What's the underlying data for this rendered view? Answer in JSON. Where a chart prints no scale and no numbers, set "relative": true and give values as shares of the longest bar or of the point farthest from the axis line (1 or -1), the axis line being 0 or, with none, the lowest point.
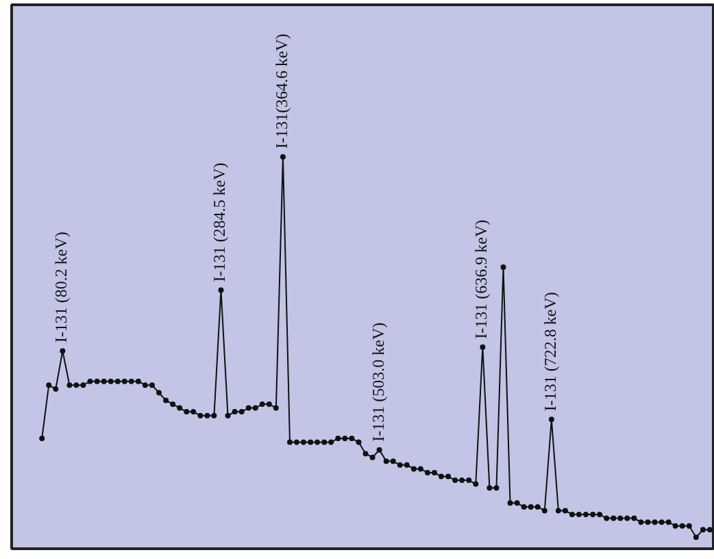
{
  "chart_data": {
    "type": "line",
    "relative": true,
    "tick_labels": false,
    "grid": false,
    "marker": "circle",
    "categories": [
      null,
      null,
      null,
      null,
      null,
      null,
      null,
      null,
      null,
      null,
      null,
      null,
      null,
      null,
      null,
      null,
      null,
      null,
      null,
      null,
      null,
      null,
      null,
      null,
      null,
      null,
      null,
      null,
      null,
      null,
      null,
      null,
      null,
      null,
      null,
      null,
      null,
      null,
      null,
      null,
      null,
      null,
      null,
      null,
      null,
      null,
      null,
      null,
      null,
      null,
      null,
      null,
      null,
      null,
      null,
      null,
      null,
      null,
      null,
      null,
      null,
      null,
      null,
      null,
      null,
      null,
      null,
      null,
      null,
      null,
      null,
      null,
      null,
      null,
      null,
      null,
      null,
      null,
      null,
      null,
      null,
      null,
      null,
      null,
      null,
      null,
      null,
      null,
      null,
      null,
      null,
      null,
      null,
      null,
      null,
      null,
      null,
      null
    ],
    "series": [
      {
        "color": "#111111",
        "values": [
          0.26,
          0.4,
          0.39,
          0.49,
          0.4,
          0.4,
          0.4,
          0.41,
          0.41,
          0.41,
          0.41,
          0.41,
          0.41,
          0.41,
          0.41,
          0.4,
          0.4,
          0.38,
          0.36,
          0.35,
          0.34,
          0.33,
          0.33,
          0.32,
          0.32,
          0.32,
          0.65,
          0.32,
          0.33,
          0.33,
          0.34,
          0.34,
          0.35,
          0.35,
          0.34,
          1.0,
          0.25,
          0.25,
          0.25,
          0.25,
          0.25,
          0.25,
          0.25,
          0.26,
          0.26,
          0.26,
          0.25,
          0.22,
          0.21,
          0.23,
          0.2,
          0.2,
          0.19,
          0.19,
          0.18,
          0.18,
          0.17,
          0.17,
          0.16,
          0.16,
          0.15,
          0.15,
          0.15,
          0.14,
          0.5,
          0.13,
          0.13,
          0.71,
          0.09,
          0.09,
          0.08,
          0.08,
          0.08,
          0.07,
          0.31,
          0.07,
          0.07,
          0.06,
          0.06,
          0.06,
          0.06,
          0.06,
          0.05,
          0.05,
          0.05,
          0.05,
          0.05,
          0.04,
          0.04,
          0.04,
          0.04,
          0.04,
          0.03,
          0.03,
          0.03,
          0.0,
          0.02,
          0.02
        ]
      }
    ],
    "annotations": [
      {
        "text": "I-131 (80.2 keV)",
        "y": 0.49
      },
      {
        "text": "I-131 (284.5 keV)",
        "y": 0.65
      },
      {
        "text": "I-131(364.6 keV)",
        "y": 1.0
      },
      {
        "text": "I-131 (503.0 keV)",
        "y": 0.23
      },
      {
        "text": "I-131 (636.9 keV)",
        "y": 0.5
      },
      {
        "text": "I-131 (722.8 keV)",
        "y": 0.31
      }
    ]
  }
}
